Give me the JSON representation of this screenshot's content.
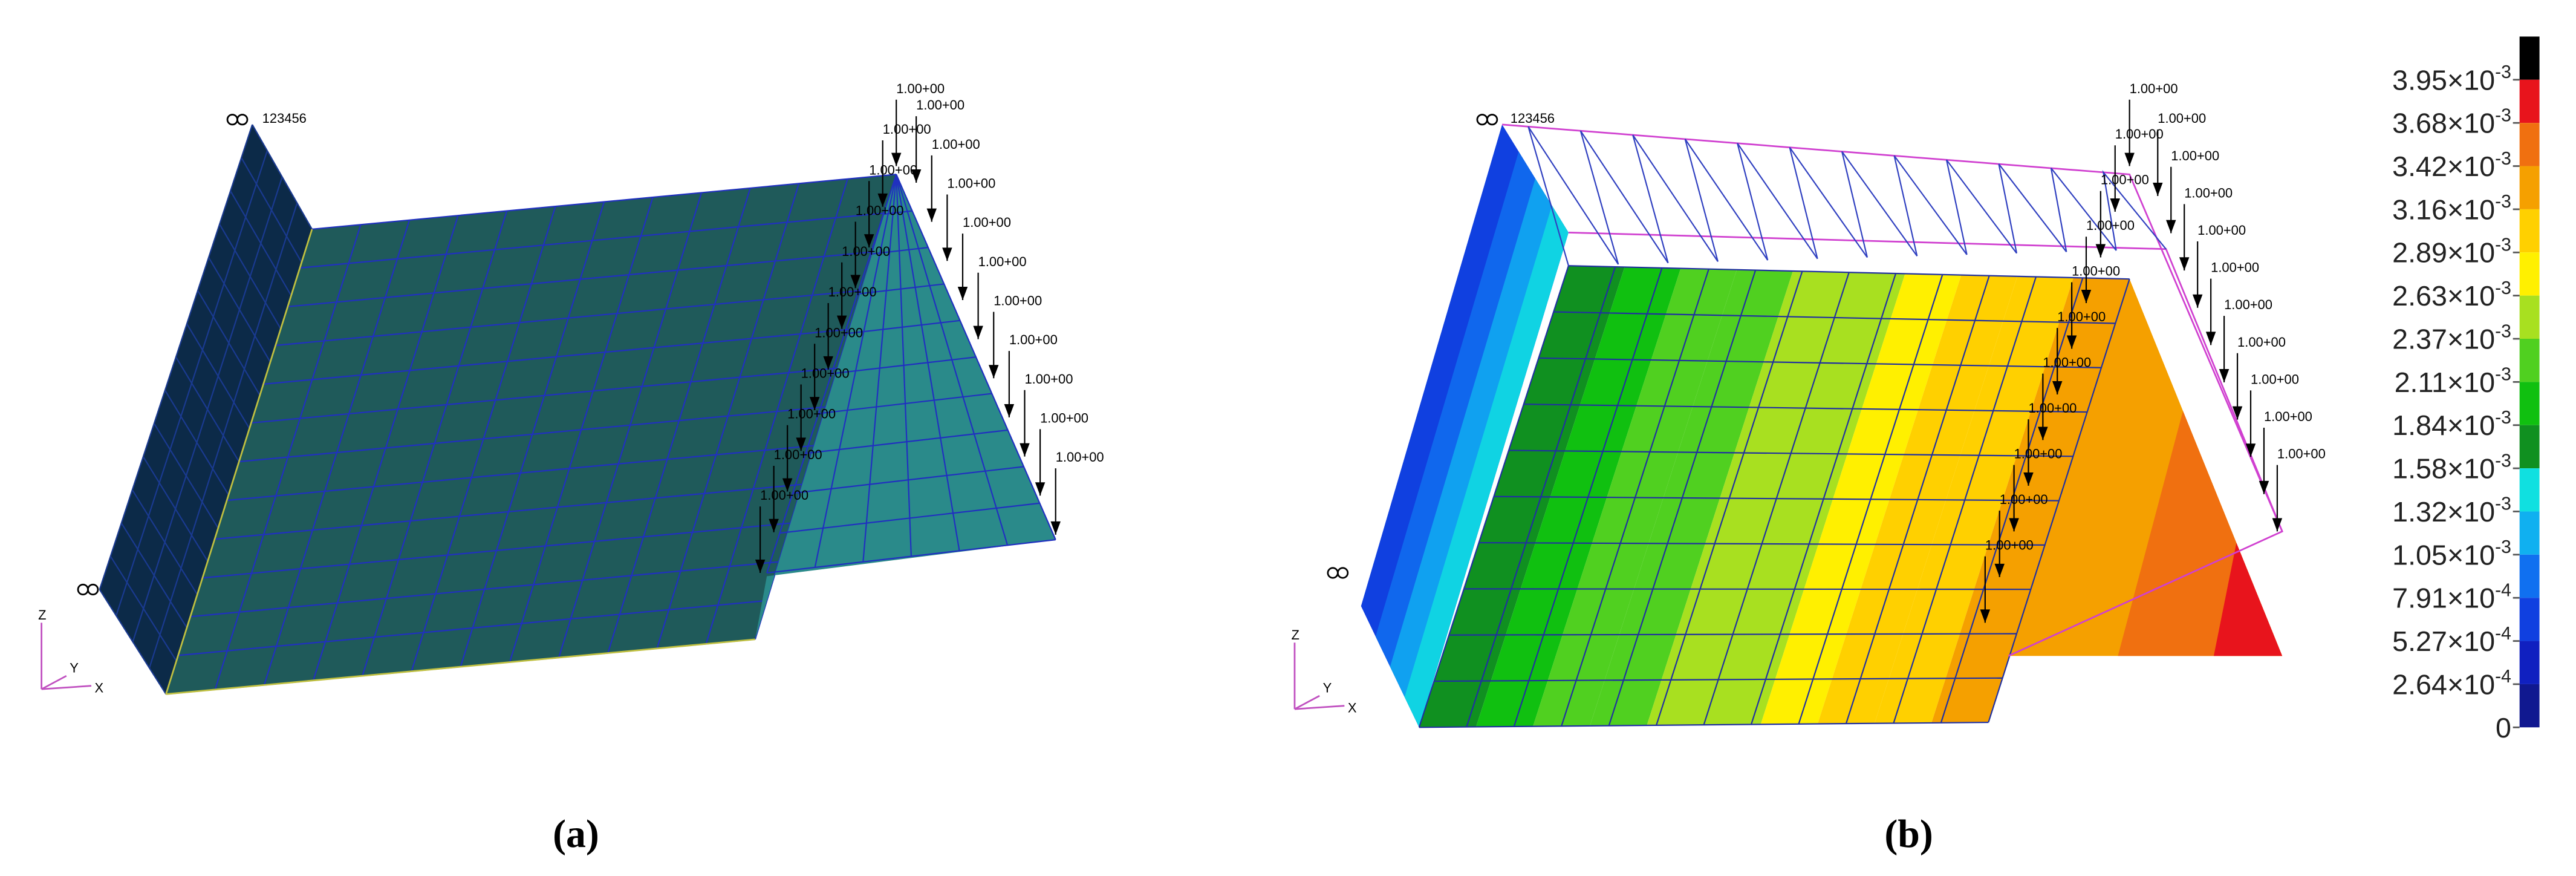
{
  "panel_a": {
    "label": "(a)",
    "node_label": "123456",
    "loads": [
      "1.00+00",
      "1.00+00",
      "1.00+00",
      "1.00+00",
      "1.00+00",
      "1.00+00",
      "1.00+00",
      "1.00+00",
      "1.00+00",
      "1.00+00",
      "1.00+00",
      "1.00+00",
      "1.00+00",
      "1.00+00",
      "1.00+00",
      "1.00+00",
      "1.00+00",
      "1.00+00",
      "1.00+00",
      "1.00+00",
      "1.00+00"
    ],
    "axes": [
      "Z",
      "Y",
      "X"
    ]
  },
  "panel_b": {
    "label": "(b)",
    "node_label": "123456",
    "loads": [
      "1.00+00",
      "1.00+00",
      "1.00+00",
      "1.00+00",
      "1.00+00",
      "1.00+00",
      "1.00+00",
      "1.00+00",
      "1.00+00",
      "1.00+00",
      "1.00+00",
      "1.00+00",
      "1.00+00",
      "1.00+00",
      "1.00+00",
      "1.00+00",
      "1.00+00",
      "1.00+00",
      "1.00+00",
      "1.00+00",
      "1.00+00"
    ],
    "axes": [
      "Z",
      "Y",
      "X"
    ]
  },
  "colorbar": {
    "colors": [
      "#000000",
      "#e8141c",
      "#f07010",
      "#f5a000",
      "#ffd000",
      "#fff000",
      "#a8e020",
      "#50d020",
      "#10c010",
      "#109020",
      "#10e0e0",
      "#10b0f0",
      "#1070f0",
      "#1040e0",
      "#1020c0",
      "#101890"
    ],
    "labels": [
      {
        "base": "3.95×10",
        "exp": "-3"
      },
      {
        "base": "3.68×10",
        "exp": "-3"
      },
      {
        "base": "3.42×10",
        "exp": "-3"
      },
      {
        "base": "3.16×10",
        "exp": "-3"
      },
      {
        "base": "2.89×10",
        "exp": "-3"
      },
      {
        "base": "2.63×10",
        "exp": "-3"
      },
      {
        "base": "2.37×10",
        "exp": "-3"
      },
      {
        "base": "2.11×10",
        "exp": "-3"
      },
      {
        "base": "1.84×10",
        "exp": "-3"
      },
      {
        "base": "1.58×10",
        "exp": "-3"
      },
      {
        "base": "1.32×10",
        "exp": "-3"
      },
      {
        "base": "1.05×10",
        "exp": "-3"
      },
      {
        "base": "7.91×10",
        "exp": "-4"
      },
      {
        "base": "5.27×10",
        "exp": "-4"
      },
      {
        "base": "2.64×10",
        "exp": "-4"
      },
      {
        "base": "0"
      }
    ]
  }
}
